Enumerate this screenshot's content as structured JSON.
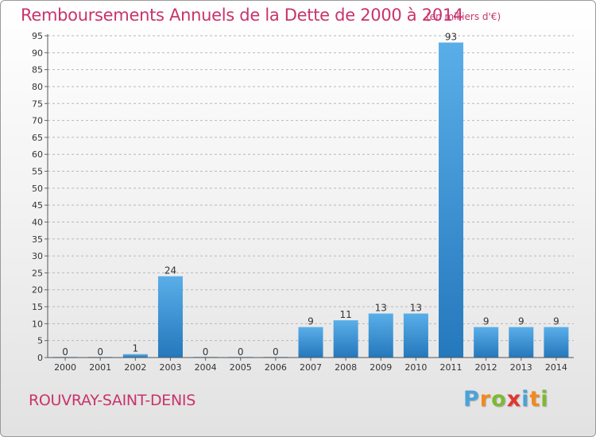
{
  "header": {
    "title": "Remboursements Annuels de la Dette de 2000 à 2014",
    "subtitle": "(en milliers d'€)"
  },
  "footer": {
    "commune": "ROUVRAY-SAINT-DENIS",
    "logo_text": "Proxiti",
    "logo_colors": [
      "#4aa3d8",
      "#f18a1f",
      "#7fb934",
      "#e3342f",
      "#4aa3d8",
      "#f18a1f",
      "#7fb934"
    ]
  },
  "colors": {
    "title": "#c8336b",
    "bar_light": "#5aaee8",
    "bar_dark": "#2478bc",
    "grid": "#b8b8b8",
    "axis_text": "#333333"
  },
  "chart_data": {
    "type": "bar",
    "title": "Remboursements Annuels de la Dette de 2000 à 2014",
    "subtitle": "(en milliers d'€)",
    "categories": [
      "2000",
      "2001",
      "2002",
      "2003",
      "2004",
      "2005",
      "2006",
      "2007",
      "2008",
      "2009",
      "2010",
      "2011",
      "2012",
      "2013",
      "2014"
    ],
    "values": [
      0,
      0,
      1,
      24,
      0,
      0,
      0,
      9,
      11,
      13,
      13,
      93,
      9,
      9,
      9
    ],
    "ylim": [
      0,
      95
    ],
    "yticks": [
      0,
      5,
      10,
      15,
      20,
      25,
      30,
      35,
      40,
      45,
      50,
      55,
      60,
      65,
      70,
      75,
      80,
      85,
      90,
      95
    ],
    "grid": true,
    "xlabel": "",
    "ylabel": ""
  }
}
